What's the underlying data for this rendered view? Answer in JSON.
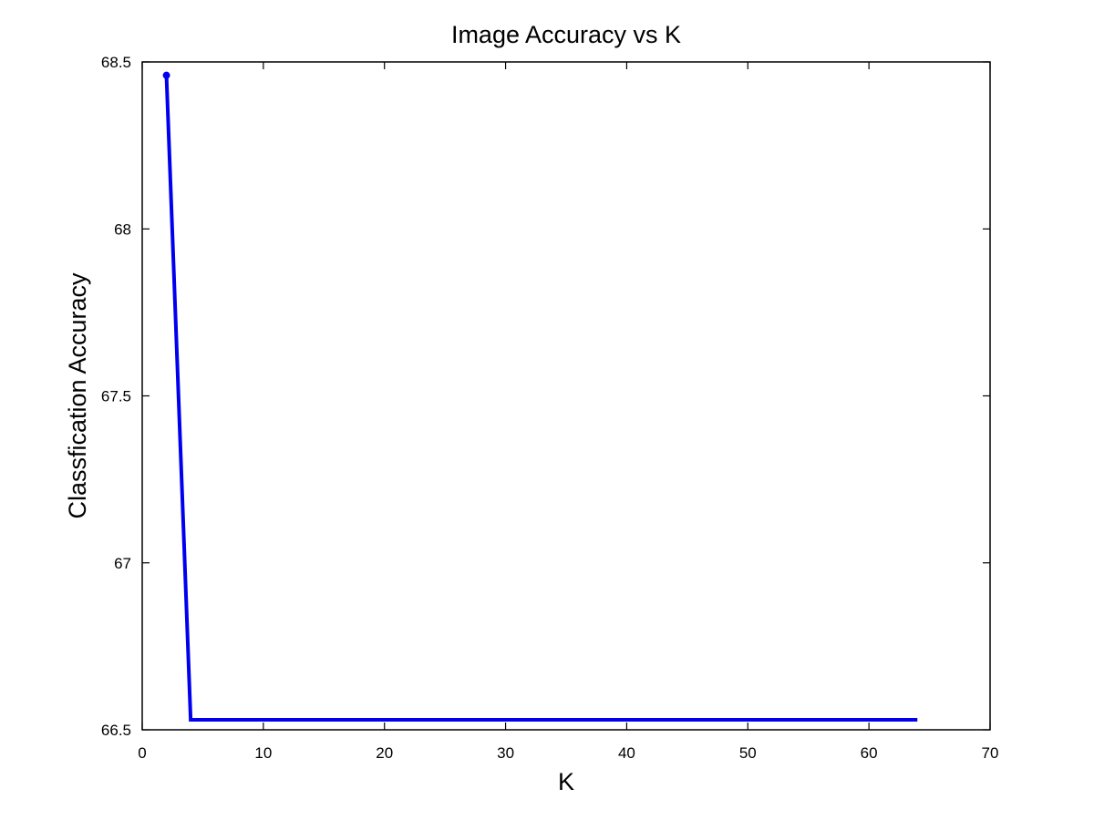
{
  "chart_data": {
    "type": "line",
    "title": "Image Accuracy vs K",
    "xlabel": "K",
    "ylabel": "Classfication Accuracy",
    "xlim": [
      0,
      70
    ],
    "ylim": [
      66.5,
      68.5
    ],
    "xticks": [
      "0",
      "10",
      "20",
      "30",
      "40",
      "50",
      "60",
      "70"
    ],
    "yticks": [
      "66.5",
      "67",
      "67.5",
      "68",
      "68.5"
    ],
    "grid": false,
    "series": [
      {
        "color": "#0000ee",
        "x": [
          2,
          4,
          8,
          16,
          32,
          64
        ],
        "y": [
          68.46,
          66.53,
          66.53,
          66.53,
          66.53,
          66.53
        ]
      }
    ]
  }
}
